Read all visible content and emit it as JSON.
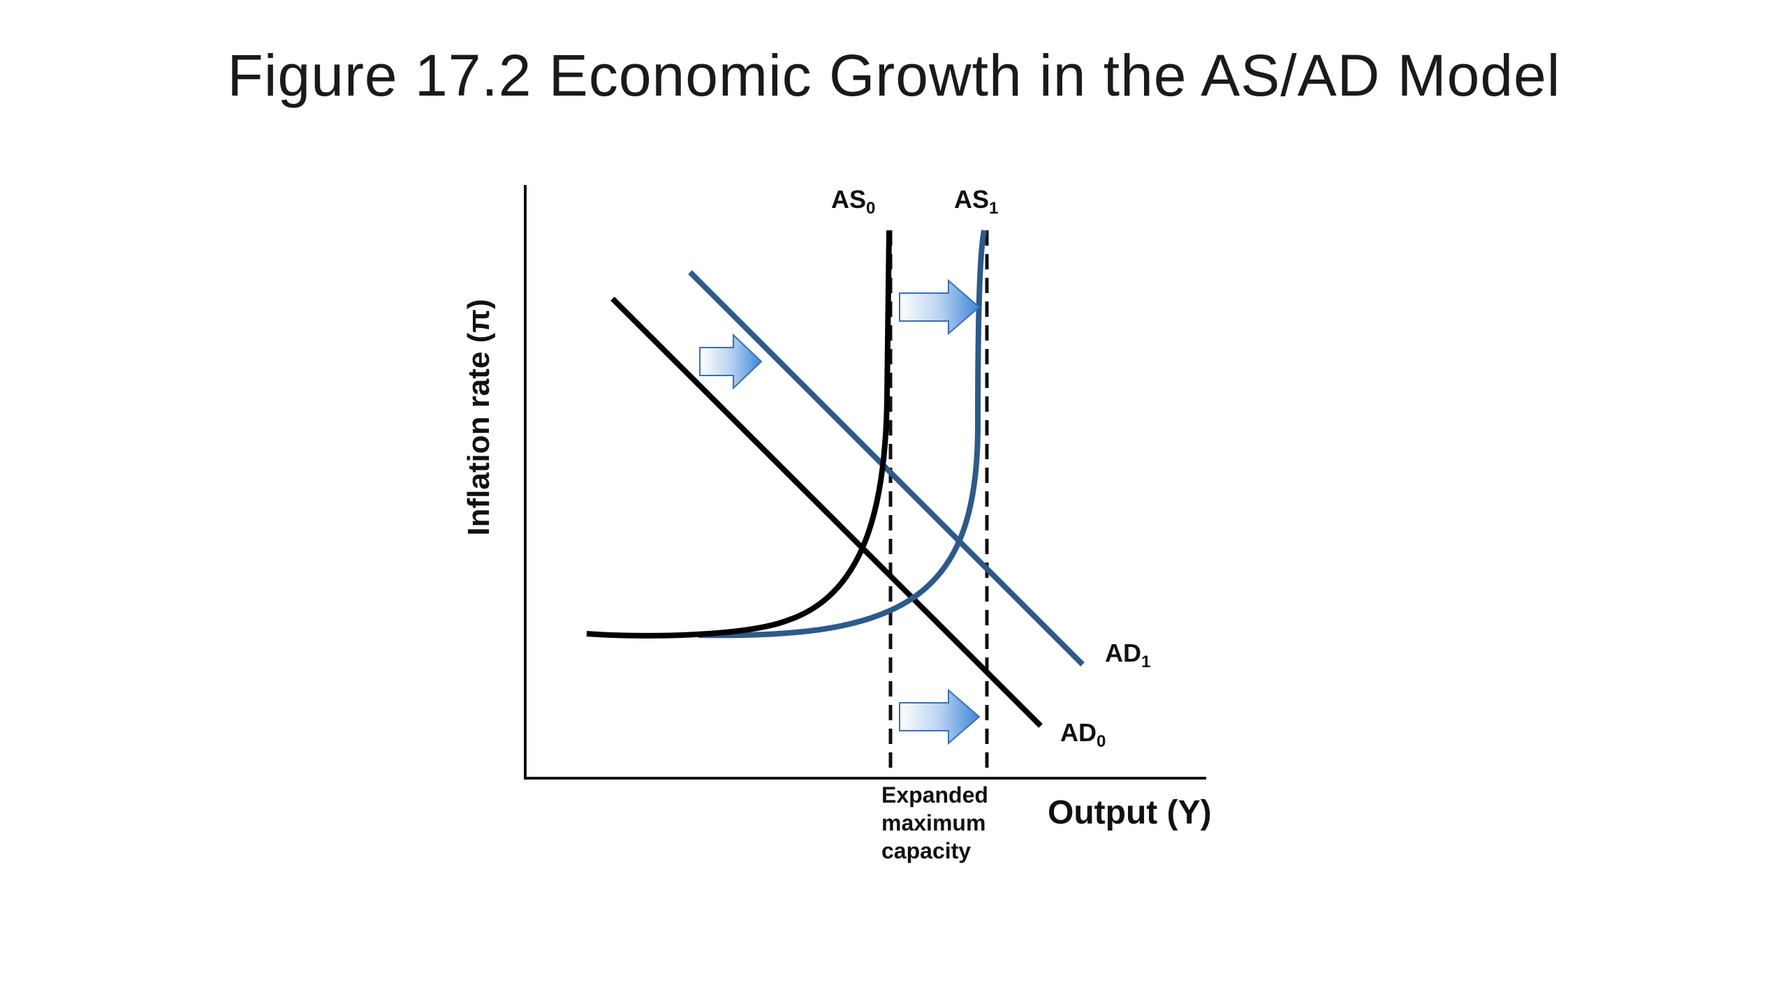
{
  "slide": {
    "title": "Figure 17.2 Economic Growth in the AS/AD Model"
  },
  "diagram": {
    "y_axis_label": "Inflation rate (π)",
    "x_axis_label": "Output (Y)",
    "curves": {
      "as0": {
        "label": "AS",
        "subscript": "0",
        "color": "#000000"
      },
      "as1": {
        "label": "AS",
        "subscript": "1",
        "color": "#2d5a88"
      },
      "ad0": {
        "label": "AD",
        "subscript": "0",
        "color": "#000000"
      },
      "ad1": {
        "label": "AD",
        "subscript": "1",
        "color": "#2d5a88"
      }
    },
    "capacity_label": [
      "Expanded",
      "maximum",
      "capacity"
    ],
    "shift_arrow_colors": {
      "light": "#ffffff",
      "mid": "#b9d3f0",
      "dark": "#3f86d9",
      "outline": "#3a6fb0"
    }
  }
}
